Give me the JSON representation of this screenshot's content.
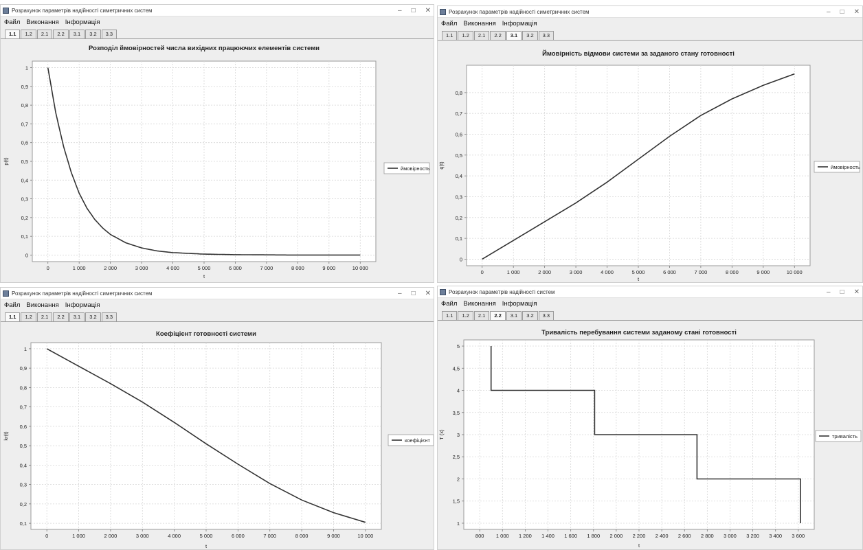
{
  "windows": [
    {
      "id": "w1",
      "title": "Розрахунок параметрів надійності симетричних систем",
      "menu": [
        "Файл",
        "Виконання",
        "Інформація"
      ],
      "tabs": [
        "1.1",
        "1.2",
        "2.1",
        "2.2",
        "3.1",
        "3.2",
        "3.3"
      ],
      "active_tab": "1.1"
    },
    {
      "id": "w2",
      "title": "Розрахунок параметрів надійності симетричних систем",
      "menu": [
        "Файл",
        "Виконання",
        "Інформація"
      ],
      "tabs": [
        "1.1",
        "1.2",
        "2.1",
        "2.2",
        "3.1",
        "3.2",
        "3.3"
      ],
      "active_tab": "3.1"
    },
    {
      "id": "w3",
      "title": "Розрахунок параметрів надійності симетричних систем",
      "menu": [
        "Файл",
        "Виконання",
        "Інформація"
      ],
      "tabs": [
        "1.1",
        "1.2",
        "2.1",
        "2.2",
        "3.1",
        "3.2",
        "3.3"
      ],
      "active_tab": "1.1"
    },
    {
      "id": "w4",
      "title": "Розрахунок параметрів надійності систем",
      "menu": [
        "Файл",
        "Виконання",
        "Інформація"
      ],
      "tabs": [
        "1.1",
        "1.2",
        "2.1",
        "2.2",
        "3.1",
        "3.2",
        "3.3"
      ],
      "active_tab": "2.2"
    }
  ],
  "chart_data": [
    {
      "type": "line",
      "title": "Розподіл ймовірностей числа вихідних працюючих елементів системи",
      "xlabel": "t",
      "ylabel": "p(t)",
      "legend_position": "right",
      "xlim": [
        0,
        10000
      ],
      "ylim": [
        0,
        1
      ],
      "x_ticks": [
        "0",
        "1 000",
        "2 000",
        "3 000",
        "4 000",
        "5 000",
        "6 000",
        "7 000",
        "8 000",
        "9 000",
        "10 000"
      ],
      "y_ticks": [
        "0",
        "0,1",
        "0,2",
        "0,3",
        "0,4",
        "0,5",
        "0,6",
        "0,7",
        "0,8",
        "0,9",
        "1"
      ],
      "series": [
        {
          "name": "ймовірность",
          "color": "#333333",
          "x": [
            0,
            250,
            500,
            750,
            1000,
            1250,
            1500,
            1750,
            2000,
            2500,
            3000,
            3500,
            4000,
            5000,
            6000,
            7000,
            8000,
            9000,
            10000
          ],
          "y": [
            1.0,
            0.76,
            0.58,
            0.44,
            0.33,
            0.25,
            0.19,
            0.145,
            0.11,
            0.065,
            0.038,
            0.022,
            0.013,
            0.005,
            0.002,
            0.001,
            0.0,
            0.0,
            0.0
          ]
        }
      ]
    },
    {
      "type": "line",
      "title": "Ймовірність відмови системи за заданого стану готовності",
      "xlabel": "t",
      "ylabel": "q(t)",
      "legend_position": "right",
      "xlim": [
        0,
        10000
      ],
      "ylim": [
        0,
        0.9
      ],
      "x_ticks": [
        "0",
        "1 000",
        "2 000",
        "3 000",
        "4 000",
        "5 000",
        "6 000",
        "7 000",
        "8 000",
        "9 000",
        "10 000"
      ],
      "y_ticks": [
        "0",
        "0,1",
        "0,2",
        "0,3",
        "0,4",
        "0,5",
        "0,6",
        "0,7",
        "0,8"
      ],
      "series": [
        {
          "name": "ймовірность",
          "color": "#333333",
          "x": [
            0,
            1000,
            2000,
            3000,
            4000,
            5000,
            6000,
            7000,
            8000,
            9000,
            10000
          ],
          "y": [
            0.0,
            0.09,
            0.18,
            0.27,
            0.37,
            0.48,
            0.59,
            0.69,
            0.77,
            0.835,
            0.89
          ]
        }
      ]
    },
    {
      "type": "line",
      "title": "Коефіцієнт готовності системи",
      "xlabel": "t",
      "ylabel": "kr(t)",
      "legend_position": "right",
      "xlim": [
        0,
        10000
      ],
      "ylim": [
        0.1,
        1
      ],
      "x_ticks": [
        "0",
        "1 000",
        "2 000",
        "3 000",
        "4 000",
        "5 000",
        "6 000",
        "7 000",
        "8 000",
        "9 000",
        "10 000"
      ],
      "y_ticks": [
        "0,1",
        "0,2",
        "0,3",
        "0,4",
        "0,5",
        "0,6",
        "0,7",
        "0,8",
        "0,9",
        "1"
      ],
      "series": [
        {
          "name": "коефіцієнт",
          "color": "#333333",
          "x": [
            0,
            1000,
            2000,
            3000,
            4000,
            5000,
            6000,
            7000,
            8000,
            9000,
            10000
          ],
          "y": [
            1.0,
            0.91,
            0.82,
            0.725,
            0.62,
            0.51,
            0.405,
            0.305,
            0.22,
            0.155,
            0.105
          ]
        }
      ]
    },
    {
      "type": "line",
      "title": "Тривалість перебування системи заданому стані готовності",
      "xlabel": "t",
      "ylabel": "T (x)",
      "legend_position": "right",
      "xlim": [
        800,
        3600
      ],
      "ylim": [
        1,
        5
      ],
      "x_ticks": [
        "800",
        "1 000",
        "1 200",
        "1 400",
        "1 600",
        "1 800",
        "2 000",
        "2 200",
        "2 400",
        "2 600",
        "2 800",
        "3 000",
        "3 200",
        "3 400",
        "3 600"
      ],
      "y_ticks": [
        "1",
        "1,5",
        "2",
        "2,5",
        "3",
        "3,5",
        "4",
        "4,5",
        "5"
      ],
      "series": [
        {
          "name": "тривалість",
          "color": "#333333",
          "x": [
            900,
            900,
            1810,
            1810,
            2710,
            2710,
            3620,
            3620
          ],
          "y": [
            5,
            4,
            4,
            3,
            3,
            2,
            2,
            1
          ]
        }
      ]
    }
  ]
}
